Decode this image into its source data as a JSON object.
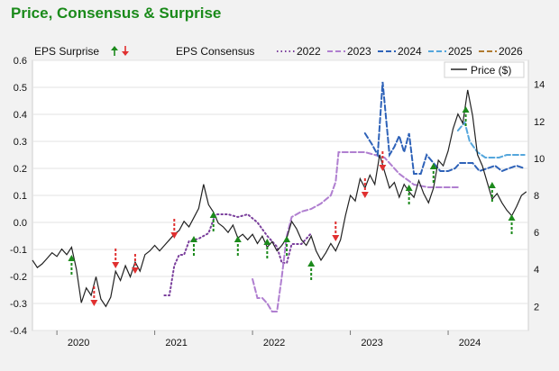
{
  "title": "Price, Consensus & Surprise",
  "chart_data": {
    "type": "line",
    "title": "Price, Consensus & Surprise",
    "x_axis": {
      "ticks": [
        "2020",
        "2021",
        "2022",
        "2023",
        "2024"
      ],
      "range": [
        2019.75,
        2024.82
      ]
    },
    "y_left": {
      "ticks": [
        "0.6",
        "0.5",
        "0.4",
        "0.3",
        "0.2",
        "0.1",
        "0.0",
        "-0.1",
        "-0.2",
        "-0.3",
        "-0.4"
      ],
      "range": [
        -0.4,
        0.6
      ]
    },
    "y_right": {
      "ticks": [
        "14",
        "12",
        "10",
        "8",
        "6",
        "4",
        "2"
      ],
      "range": [
        0.7,
        15.3
      ]
    },
    "grid": "horizontal",
    "legend": {
      "eps_surprise": "EPS Surprise",
      "eps_consensus": "EPS Consensus",
      "years": [
        "2022",
        "2023",
        "2024",
        "2025",
        "2026"
      ],
      "price": "Price ($)"
    },
    "colors": {
      "price": "#222222",
      "c2022": "#7a3f9c",
      "c2023": "#b07fd0",
      "c2024": "#2e62b8",
      "c2025": "#54a6dc",
      "c2026": "#b07a30",
      "up": "#1c8a1c",
      "down": "#e03030",
      "title": "#1a8a1a"
    },
    "price_series": [
      [
        2019.75,
        4.5
      ],
      [
        2019.8,
        4.1
      ],
      [
        2019.85,
        4.3
      ],
      [
        2019.9,
        4.6
      ],
      [
        2019.95,
        4.9
      ],
      [
        2020.0,
        4.7
      ],
      [
        2020.05,
        5.1
      ],
      [
        2020.1,
        4.8
      ],
      [
        2020.15,
        5.2
      ],
      [
        2020.2,
        4.0
      ],
      [
        2020.25,
        2.2
      ],
      [
        2020.3,
        3.0
      ],
      [
        2020.35,
        2.6
      ],
      [
        2020.4,
        3.6
      ],
      [
        2020.45,
        2.4
      ],
      [
        2020.5,
        2.0
      ],
      [
        2020.55,
        2.5
      ],
      [
        2020.6,
        3.9
      ],
      [
        2020.65,
        3.4
      ],
      [
        2020.7,
        4.2
      ],
      [
        2020.75,
        3.6
      ],
      [
        2020.8,
        4.4
      ],
      [
        2020.85,
        3.9
      ],
      [
        2020.9,
        4.8
      ],
      [
        2020.95,
        5.0
      ],
      [
        2021.0,
        5.3
      ],
      [
        2021.05,
        5.0
      ],
      [
        2021.1,
        5.3
      ],
      [
        2021.15,
        5.6
      ],
      [
        2021.2,
        5.9
      ],
      [
        2021.25,
        6.1
      ],
      [
        2021.3,
        6.6
      ],
      [
        2021.35,
        6.3
      ],
      [
        2021.4,
        6.8
      ],
      [
        2021.45,
        7.3
      ],
      [
        2021.5,
        8.6
      ],
      [
        2021.55,
        7.5
      ],
      [
        2021.6,
        7.1
      ],
      [
        2021.65,
        6.5
      ],
      [
        2021.7,
        6.3
      ],
      [
        2021.75,
        6.0
      ],
      [
        2021.8,
        6.4
      ],
      [
        2021.85,
        5.7
      ],
      [
        2021.9,
        5.9
      ],
      [
        2021.95,
        5.6
      ],
      [
        2022.0,
        5.9
      ],
      [
        2022.05,
        5.4
      ],
      [
        2022.1,
        5.8
      ],
      [
        2022.15,
        5.2
      ],
      [
        2022.2,
        5.5
      ],
      [
        2022.25,
        5.0
      ],
      [
        2022.3,
        5.3
      ],
      [
        2022.35,
        5.7
      ],
      [
        2022.4,
        6.6
      ],
      [
        2022.45,
        6.2
      ],
      [
        2022.5,
        5.6
      ],
      [
        2022.55,
        5.3
      ],
      [
        2022.6,
        5.8
      ],
      [
        2022.65,
        5.0
      ],
      [
        2022.7,
        4.5
      ],
      [
        2022.75,
        4.9
      ],
      [
        2022.8,
        5.4
      ],
      [
        2022.85,
        5.0
      ],
      [
        2022.9,
        5.6
      ],
      [
        2022.95,
        6.9
      ],
      [
        2023.0,
        8.0
      ],
      [
        2023.05,
        7.7
      ],
      [
        2023.1,
        8.9
      ],
      [
        2023.15,
        8.4
      ],
      [
        2023.2,
        9.1
      ],
      [
        2023.25,
        8.6
      ],
      [
        2023.3,
        10.2
      ],
      [
        2023.35,
        9.3
      ],
      [
        2023.4,
        8.4
      ],
      [
        2023.45,
        8.7
      ],
      [
        2023.5,
        7.9
      ],
      [
        2023.55,
        8.6
      ],
      [
        2023.6,
        8.2
      ],
      [
        2023.65,
        7.9
      ],
      [
        2023.7,
        8.8
      ],
      [
        2023.75,
        8.1
      ],
      [
        2023.8,
        7.6
      ],
      [
        2023.85,
        8.4
      ],
      [
        2023.9,
        9.9
      ],
      [
        2023.95,
        9.6
      ],
      [
        2024.0,
        10.4
      ],
      [
        2024.05,
        11.6
      ],
      [
        2024.1,
        12.4
      ],
      [
        2024.15,
        11.9
      ],
      [
        2024.2,
        13.7
      ],
      [
        2024.25,
        12.3
      ],
      [
        2024.3,
        10.2
      ],
      [
        2024.35,
        9.6
      ],
      [
        2024.4,
        8.7
      ],
      [
        2024.45,
        7.8
      ],
      [
        2024.5,
        8.1
      ],
      [
        2024.55,
        7.6
      ],
      [
        2024.6,
        7.2
      ],
      [
        2024.65,
        6.9
      ],
      [
        2024.7,
        7.4
      ],
      [
        2024.75,
        8.0
      ],
      [
        2024.8,
        8.2
      ]
    ],
    "consensus": [
      {
        "name": "2022",
        "color_key": "c2022",
        "style": "dotted",
        "points": [
          [
            2021.1,
            -0.27
          ],
          [
            2021.15,
            -0.27
          ],
          [
            2021.2,
            -0.16
          ],
          [
            2021.25,
            -0.12
          ],
          [
            2021.3,
            -0.12
          ],
          [
            2021.35,
            -0.07
          ],
          [
            2021.45,
            -0.06
          ],
          [
            2021.55,
            -0.04
          ],
          [
            2021.62,
            0.03
          ],
          [
            2021.75,
            0.03
          ],
          [
            2021.85,
            0.02
          ],
          [
            2021.95,
            0.03
          ],
          [
            2022.05,
            0.0
          ],
          [
            2022.15,
            -0.05
          ],
          [
            2022.25,
            -0.09
          ],
          [
            2022.3,
            -0.15
          ],
          [
            2022.35,
            -0.15
          ],
          [
            2022.4,
            -0.08
          ],
          [
            2022.5,
            -0.08
          ],
          [
            2022.6,
            -0.04
          ]
        ]
      },
      {
        "name": "2023",
        "color_key": "c2023",
        "style": "dashed",
        "points": [
          [
            2022.0,
            -0.21
          ],
          [
            2022.05,
            -0.28
          ],
          [
            2022.1,
            -0.28
          ],
          [
            2022.15,
            -0.3
          ],
          [
            2022.2,
            -0.33
          ],
          [
            2022.25,
            -0.33
          ],
          [
            2022.3,
            -0.2
          ],
          [
            2022.35,
            -0.05
          ],
          [
            2022.4,
            0.02
          ],
          [
            2022.5,
            0.04
          ],
          [
            2022.6,
            0.05
          ],
          [
            2022.7,
            0.07
          ],
          [
            2022.8,
            0.1
          ],
          [
            2022.85,
            0.15
          ],
          [
            2022.88,
            0.26
          ],
          [
            2022.95,
            0.26
          ],
          [
            2023.05,
            0.26
          ],
          [
            2023.15,
            0.26
          ],
          [
            2023.25,
            0.25
          ],
          [
            2023.35,
            0.24
          ],
          [
            2023.5,
            0.18
          ],
          [
            2023.65,
            0.14
          ],
          [
            2023.8,
            0.13
          ],
          [
            2023.95,
            0.13
          ],
          [
            2024.1,
            0.13
          ]
        ]
      },
      {
        "name": "2024",
        "color_key": "c2024",
        "style": "dashed",
        "points": [
          [
            2023.15,
            0.33
          ],
          [
            2023.22,
            0.29
          ],
          [
            2023.28,
            0.25
          ],
          [
            2023.33,
            0.52
          ],
          [
            2023.4,
            0.25
          ],
          [
            2023.45,
            0.28
          ],
          [
            2023.5,
            0.32
          ],
          [
            2023.55,
            0.26
          ],
          [
            2023.6,
            0.33
          ],
          [
            2023.65,
            0.18
          ],
          [
            2023.72,
            0.18
          ],
          [
            2023.78,
            0.25
          ],
          [
            2023.85,
            0.22
          ],
          [
            2023.92,
            0.19
          ],
          [
            2024.0,
            0.19
          ],
          [
            2024.07,
            0.2
          ],
          [
            2024.12,
            0.22
          ],
          [
            2024.18,
            0.22
          ],
          [
            2024.25,
            0.22
          ],
          [
            2024.32,
            0.19
          ],
          [
            2024.4,
            0.2
          ],
          [
            2024.48,
            0.21
          ],
          [
            2024.55,
            0.19
          ],
          [
            2024.62,
            0.2
          ],
          [
            2024.7,
            0.21
          ],
          [
            2024.78,
            0.2
          ]
        ]
      },
      {
        "name": "2025",
        "color_key": "c2025",
        "style": "dashed",
        "points": [
          [
            2024.1,
            0.34
          ],
          [
            2024.17,
            0.37
          ],
          [
            2024.22,
            0.3
          ],
          [
            2024.3,
            0.26
          ],
          [
            2024.38,
            0.24
          ],
          [
            2024.45,
            0.24
          ],
          [
            2024.52,
            0.24
          ],
          [
            2024.6,
            0.25
          ],
          [
            2024.68,
            0.25
          ],
          [
            2024.78,
            0.25
          ]
        ]
      }
    ],
    "surprises": [
      {
        "x": 2020.15,
        "y": -0.12,
        "dir": "up"
      },
      {
        "x": 2020.38,
        "y": -0.31,
        "dir": "down"
      },
      {
        "x": 2020.6,
        "y": -0.17,
        "dir": "down"
      },
      {
        "x": 2020.8,
        "y": -0.19,
        "dir": "down"
      },
      {
        "x": 2021.2,
        "y": -0.06,
        "dir": "down"
      },
      {
        "x": 2021.4,
        "y": -0.05,
        "dir": "up"
      },
      {
        "x": 2021.6,
        "y": 0.04,
        "dir": "up"
      },
      {
        "x": 2021.85,
        "y": -0.05,
        "dir": "up"
      },
      {
        "x": 2022.15,
        "y": -0.06,
        "dir": "up"
      },
      {
        "x": 2022.35,
        "y": -0.05,
        "dir": "up"
      },
      {
        "x": 2022.6,
        "y": -0.14,
        "dir": "up"
      },
      {
        "x": 2022.85,
        "y": -0.07,
        "dir": "down"
      },
      {
        "x": 2023.15,
        "y": 0.09,
        "dir": "down"
      },
      {
        "x": 2023.33,
        "y": 0.19,
        "dir": "down"
      },
      {
        "x": 2023.6,
        "y": 0.14,
        "dir": "up"
      },
      {
        "x": 2023.85,
        "y": 0.22,
        "dir": "up"
      },
      {
        "x": 2024.18,
        "y": 0.43,
        "dir": "up"
      },
      {
        "x": 2024.45,
        "y": 0.15,
        "dir": "up"
      },
      {
        "x": 2024.65,
        "y": 0.03,
        "dir": "up"
      }
    ]
  }
}
